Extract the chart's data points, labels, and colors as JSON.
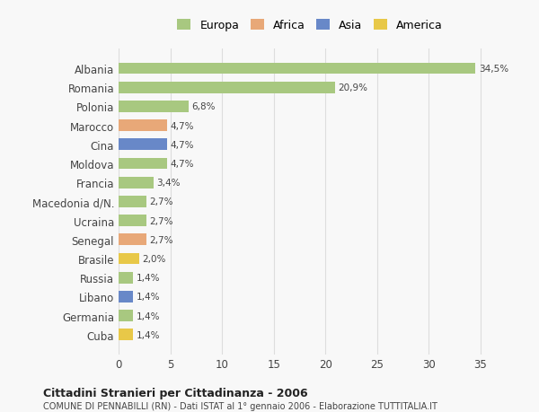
{
  "categories": [
    "Albania",
    "Romania",
    "Polonia",
    "Marocco",
    "Cina",
    "Moldova",
    "Francia",
    "Macedonia d/N.",
    "Ucraina",
    "Senegal",
    "Brasile",
    "Russia",
    "Libano",
    "Germania",
    "Cuba"
  ],
  "values": [
    34.5,
    20.9,
    6.8,
    4.7,
    4.7,
    4.7,
    3.4,
    2.7,
    2.7,
    2.7,
    2.0,
    1.4,
    1.4,
    1.4,
    1.4
  ],
  "labels": [
    "34,5%",
    "20,9%",
    "6,8%",
    "4,7%",
    "4,7%",
    "4,7%",
    "3,4%",
    "2,7%",
    "2,7%",
    "2,7%",
    "2,0%",
    "1,4%",
    "1,4%",
    "1,4%",
    "1,4%"
  ],
  "colors": [
    "#a8c880",
    "#a8c880",
    "#a8c880",
    "#e8a878",
    "#6888c8",
    "#a8c880",
    "#a8c880",
    "#a8c880",
    "#a8c880",
    "#e8a878",
    "#e8c848",
    "#a8c880",
    "#6888c8",
    "#a8c880",
    "#e8c848"
  ],
  "legend": [
    {
      "label": "Europa",
      "color": "#a8c880"
    },
    {
      "label": "Africa",
      "color": "#e8a878"
    },
    {
      "label": "Asia",
      "color": "#6888c8"
    },
    {
      "label": "America",
      "color": "#e8c848"
    }
  ],
  "xlim": [
    0,
    37
  ],
  "xticks": [
    0,
    5,
    10,
    15,
    20,
    25,
    30,
    35
  ],
  "title": "Cittadini Stranieri per Cittadinanza - 2006",
  "subtitle": "COMUNE DI PENNABILLI (RN) - Dati ISTAT al 1° gennaio 2006 - Elaborazione TUTTITALIA.IT",
  "bg_color": "#f8f8f8",
  "grid_color": "#dddddd",
  "bar_height": 0.6
}
